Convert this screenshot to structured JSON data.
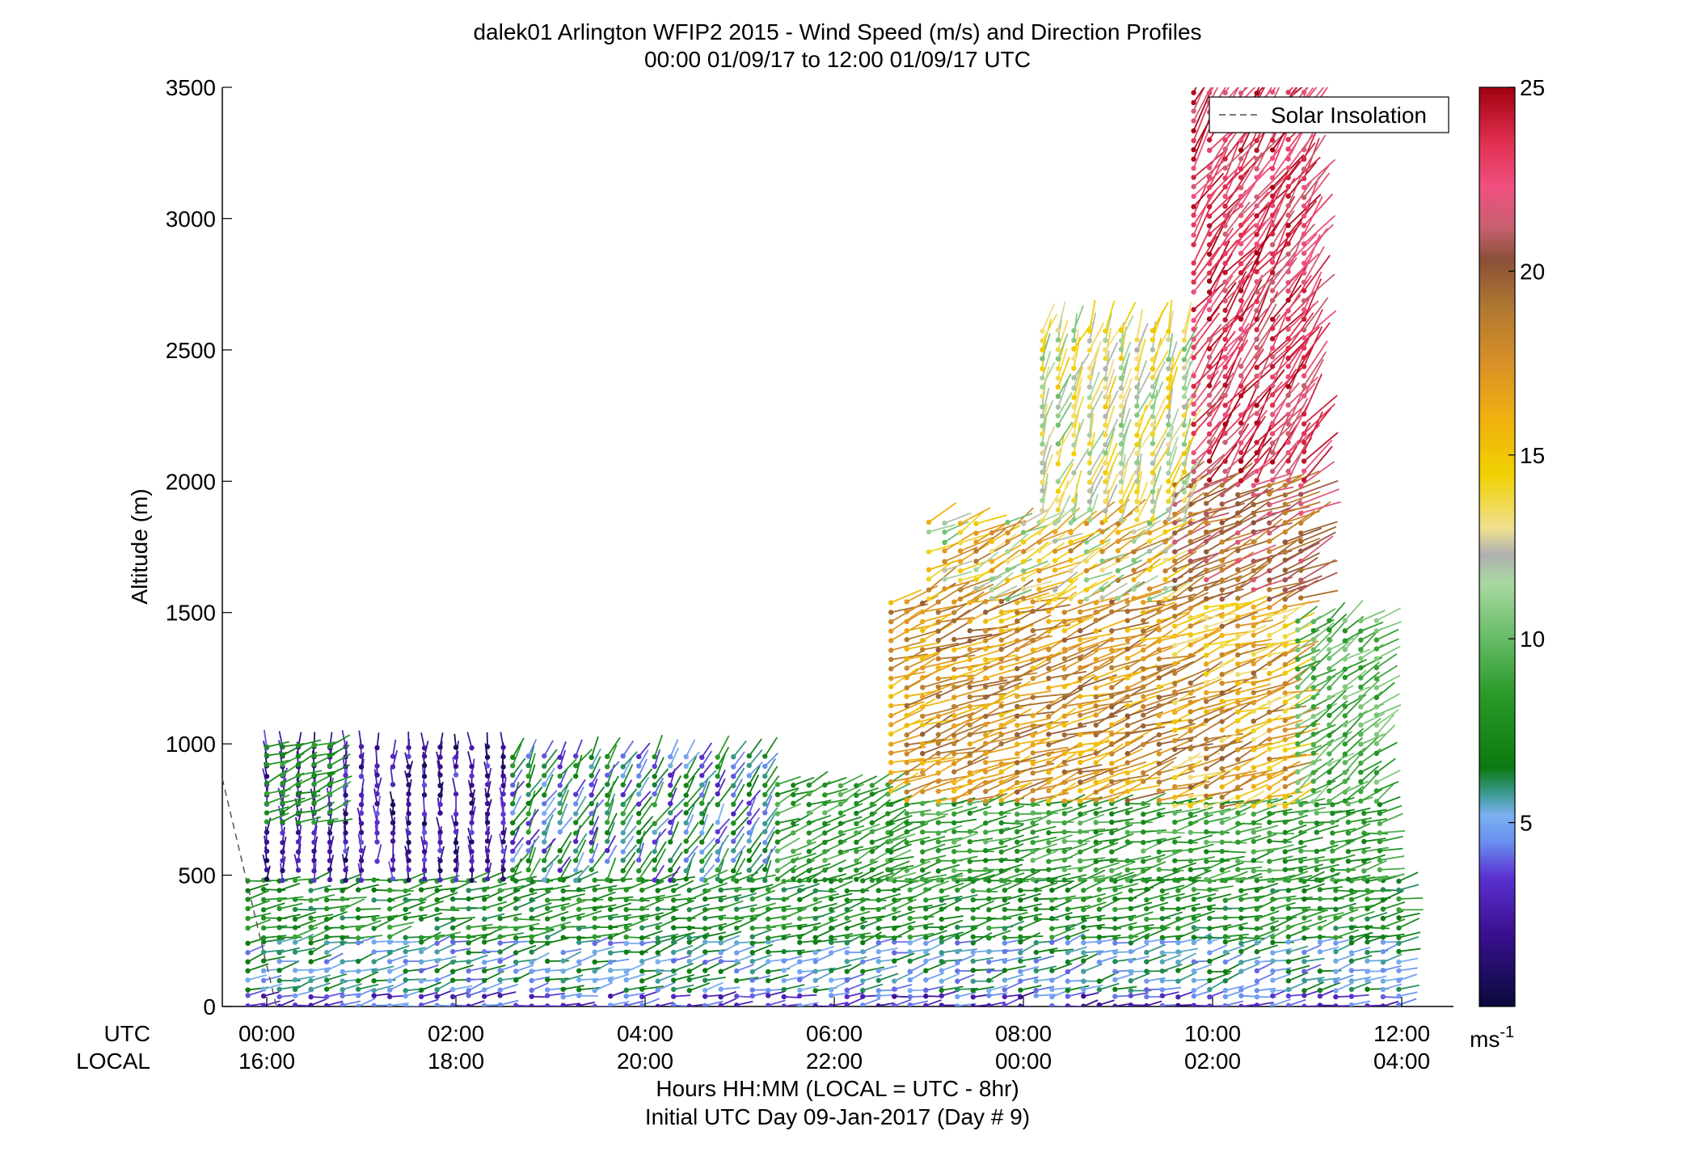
{
  "title_line1": "dalek01 Arlington WFIP2 2015 - Wind Speed (m/s) and Direction Profiles",
  "title_line2": "00:00 01/09/17 to 12:00 01/09/17  UTC",
  "ylabel": "Altitude (m)",
  "xlabel": "Hours HH:MM  (LOCAL = UTC - 8hr)",
  "xlabel2": "Initial UTC Day 09-Jan-2017 (Day # 9)",
  "utc_label": "UTC",
  "local_label": "LOCAL",
  "legend_label": "Solar Insolation",
  "colorbar_unit": "ms",
  "colorbar_unit_exp": "-1",
  "chart_data": {
    "type": "wind-barb-profile",
    "xlim": [
      -0.5,
      12.5
    ],
    "ylim": [
      0,
      3500
    ],
    "yticks": [
      0,
      500,
      1000,
      1500,
      2000,
      2500,
      3000,
      3500
    ],
    "ytick_labels": [
      "0",
      "500",
      "1000",
      "1500",
      "2000",
      "2500",
      "3000",
      "3500"
    ],
    "xticks": [
      0,
      2,
      4,
      6,
      8,
      10,
      12
    ],
    "xtick_utc": [
      "00:00",
      "02:00",
      "04:00",
      "06:00",
      "08:00",
      "10:00",
      "12:00"
    ],
    "xtick_local": [
      "16:00",
      "18:00",
      "20:00",
      "22:00",
      "00:00",
      "02:00",
      "04:00"
    ],
    "colorbar": {
      "range": [
        0,
        25
      ],
      "ticks": [
        5,
        10,
        15,
        20,
        25
      ],
      "tick_labels": [
        "5",
        "10",
        "15",
        "20",
        "25"
      ],
      "colors": [
        {
          "v": 0,
          "c": "#0a0a3c"
        },
        {
          "v": 2,
          "c": "#3a1090"
        },
        {
          "v": 3.5,
          "c": "#5a30d0"
        },
        {
          "v": 4.5,
          "c": "#6a90f0"
        },
        {
          "v": 5.2,
          "c": "#7ab0f0"
        },
        {
          "v": 5.8,
          "c": "#3a9a90"
        },
        {
          "v": 6.5,
          "c": "#0a7a10"
        },
        {
          "v": 8.5,
          "c": "#2a9a2a"
        },
        {
          "v": 10,
          "c": "#66bb66"
        },
        {
          "v": 11.5,
          "c": "#a8d8a0"
        },
        {
          "v": 12.3,
          "c": "#b0b0b0"
        },
        {
          "v": 13,
          "c": "#f0e090"
        },
        {
          "v": 14.5,
          "c": "#f0d000"
        },
        {
          "v": 16,
          "c": "#f0b010"
        },
        {
          "v": 17.5,
          "c": "#d89028"
        },
        {
          "v": 19,
          "c": "#b07830"
        },
        {
          "v": 20.3,
          "c": "#8a5038"
        },
        {
          "v": 21.2,
          "c": "#c86070"
        },
        {
          "v": 22.3,
          "c": "#f05080"
        },
        {
          "v": 23.5,
          "c": "#e03050"
        },
        {
          "v": 25,
          "c": "#a00010"
        }
      ]
    },
    "regimes": [
      {
        "x0": -0.2,
        "x1": 12.0,
        "z0": 0,
        "z1": 60,
        "wmin": 2,
        "wmax": 5,
        "dir": 260
      },
      {
        "x0": -0.2,
        "x1": 12.0,
        "z0": 60,
        "z1": 260,
        "wmin": 4,
        "wmax": 7,
        "dir": 255
      },
      {
        "x0": -0.2,
        "x1": 12.0,
        "z0": 260,
        "z1": 480,
        "wmin": 6,
        "wmax": 9,
        "dir": 258
      },
      {
        "x0": 0.0,
        "x1": 2.6,
        "z0": 480,
        "z1": 1000,
        "wmin": 0.5,
        "wmax": 4,
        "dir": 180
      },
      {
        "x0": 0.0,
        "x1": 0.8,
        "z0": 700,
        "z1": 1000,
        "wmin": 7,
        "wmax": 9,
        "dir": 250
      },
      {
        "x0": 2.6,
        "x1": 5.4,
        "z0": 480,
        "z1": 950,
        "wmin": 3,
        "wmax": 9,
        "dir": 210
      },
      {
        "x0": 5.4,
        "x1": 6.6,
        "z0": 480,
        "z1": 850,
        "wmin": 7,
        "wmax": 10,
        "dir": 245
      },
      {
        "x0": 6.6,
        "x1": 11.8,
        "z0": 480,
        "z1": 780,
        "wmin": 7,
        "wmax": 10,
        "dir": 258
      },
      {
        "x0": 6.6,
        "x1": 9.6,
        "z0": 780,
        "z1": 1550,
        "wmin": 15,
        "wmax": 20,
        "dir": 250
      },
      {
        "x0": 9.6,
        "x1": 10.9,
        "z0": 760,
        "z1": 1550,
        "wmin": 13,
        "wmax": 20,
        "dir": 250
      },
      {
        "x0": 10.9,
        "x1": 11.8,
        "z0": 780,
        "z1": 1500,
        "wmin": 8,
        "wmax": 11,
        "dir": 235
      },
      {
        "x0": 7.0,
        "x1": 9.6,
        "z0": 1550,
        "z1": 1850,
        "wmin": 10,
        "wmax": 19,
        "dir": 240
      },
      {
        "x0": 9.6,
        "x1": 11.0,
        "z0": 1550,
        "z1": 2000,
        "wmin": 18,
        "wmax": 22,
        "dir": 245
      },
      {
        "x0": 8.2,
        "x1": 9.8,
        "z0": 1850,
        "z1": 2600,
        "wmin": 10,
        "wmax": 15,
        "dir": 200
      },
      {
        "x0": 9.8,
        "x1": 11.0,
        "z0": 2000,
        "z1": 3500,
        "wmin": 21,
        "wmax": 25,
        "dir": 215
      }
    ]
  }
}
